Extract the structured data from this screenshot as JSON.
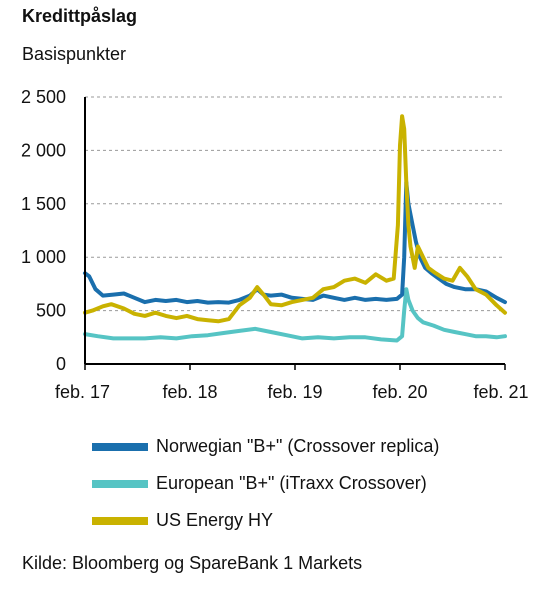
{
  "chart_data": {
    "type": "line",
    "title": "Kredittpåslag",
    "ylabel": "Basispunkter",
    "xlabel": "",
    "ylim": [
      0,
      2500
    ],
    "yticks": [
      0,
      500,
      1000,
      1500,
      2000,
      2500
    ],
    "ytick_labels": [
      "0",
      "500",
      "1 000",
      "1 500",
      "2 000",
      "2 500"
    ],
    "xlim": [
      2017.08,
      2021.08
    ],
    "xticks": [
      2017.08,
      2018.08,
      2019.08,
      2020.08,
      2021.08
    ],
    "xtick_labels": [
      "feb. 17",
      "feb. 18",
      "feb. 19",
      "feb. 20",
      "feb. 21"
    ],
    "grid": "horizontal dashed",
    "legend_position": "bottom",
    "series": [
      {
        "name": "Norwegian \"B+\" (Crossover replica)",
        "color": "#1a6fad",
        "x": [
          2017.08,
          2017.12,
          2017.18,
          2017.25,
          2017.35,
          2017.45,
          2017.55,
          2017.65,
          2017.75,
          2017.85,
          2017.95,
          2018.05,
          2018.15,
          2018.25,
          2018.35,
          2018.45,
          2018.55,
          2018.65,
          2018.72,
          2018.78,
          2018.85,
          2018.95,
          2019.05,
          2019.15,
          2019.25,
          2019.35,
          2019.45,
          2019.55,
          2019.65,
          2019.75,
          2019.85,
          2019.95,
          2020.05,
          2020.1,
          2020.12,
          2020.14,
          2020.16,
          2020.18,
          2020.2,
          2020.23,
          2020.27,
          2020.32,
          2020.38,
          2020.45,
          2020.52,
          2020.6,
          2020.7,
          2020.8,
          2020.9,
          2021.0,
          2021.08
        ],
        "values": [
          850,
          820,
          700,
          640,
          650,
          660,
          620,
          580,
          600,
          590,
          600,
          580,
          590,
          575,
          580,
          575,
          600,
          640,
          700,
          650,
          640,
          650,
          620,
          610,
          600,
          640,
          620,
          600,
          620,
          600,
          610,
          600,
          610,
          650,
          1000,
          1700,
          1500,
          1400,
          1300,
          1150,
          1000,
          900,
          850,
          800,
          750,
          720,
          700,
          700,
          680,
          620,
          580
        ]
      },
      {
        "name": "European \"B+\" (iTraxx Crossover)",
        "color": "#56c4c4",
        "x": [
          2017.08,
          2017.2,
          2017.35,
          2017.5,
          2017.65,
          2017.8,
          2017.95,
          2018.1,
          2018.25,
          2018.4,
          2018.55,
          2018.7,
          2018.85,
          2019.0,
          2019.15,
          2019.3,
          2019.45,
          2019.6,
          2019.75,
          2019.9,
          2020.05,
          2020.1,
          2020.12,
          2020.14,
          2020.16,
          2020.2,
          2020.25,
          2020.3,
          2020.4,
          2020.5,
          2020.6,
          2020.7,
          2020.8,
          2020.9,
          2021.0,
          2021.08
        ],
        "values": [
          280,
          260,
          240,
          240,
          240,
          250,
          240,
          260,
          270,
          290,
          310,
          330,
          300,
          270,
          240,
          250,
          240,
          250,
          250,
          230,
          220,
          260,
          500,
          700,
          600,
          500,
          430,
          390,
          360,
          320,
          300,
          280,
          260,
          260,
          250,
          260
        ]
      },
      {
        "name": "US Energy HY",
        "color": "#c9b200",
        "x": [
          2017.08,
          2017.15,
          2017.25,
          2017.33,
          2017.45,
          2017.55,
          2017.65,
          2017.75,
          2017.85,
          2017.95,
          2018.05,
          2018.15,
          2018.25,
          2018.35,
          2018.45,
          2018.55,
          2018.65,
          2018.72,
          2018.78,
          2018.85,
          2018.95,
          2019.05,
          2019.15,
          2019.25,
          2019.35,
          2019.45,
          2019.55,
          2019.65,
          2019.75,
          2019.85,
          2019.95,
          2020.02,
          2020.06,
          2020.08,
          2020.1,
          2020.12,
          2020.14,
          2020.16,
          2020.18,
          2020.2,
          2020.22,
          2020.25,
          2020.3,
          2020.35,
          2020.42,
          2020.5,
          2020.58,
          2020.65,
          2020.72,
          2020.8,
          2020.9,
          2021.0,
          2021.08
        ],
        "values": [
          480,
          500,
          540,
          560,
          520,
          470,
          450,
          480,
          450,
          430,
          450,
          420,
          410,
          400,
          420,
          550,
          620,
          720,
          650,
          560,
          550,
          580,
          600,
          620,
          700,
          720,
          780,
          800,
          760,
          840,
          780,
          800,
          1300,
          2050,
          2320,
          2200,
          1700,
          1300,
          1100,
          1000,
          900,
          1100,
          1000,
          900,
          850,
          800,
          780,
          900,
          820,
          700,
          650,
          550,
          480
        ]
      }
    ]
  },
  "source": "Kilde: Bloomberg og SpareBank 1 Markets"
}
